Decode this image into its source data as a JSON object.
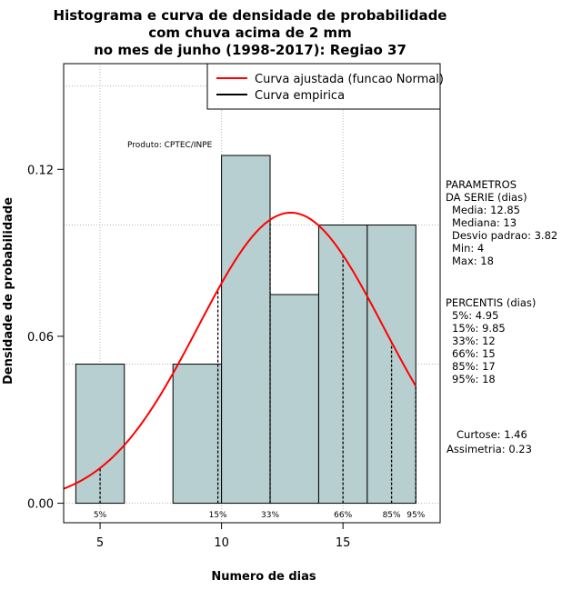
{
  "chart_data": {
    "type": "bar",
    "title": [
      "Histograma e curva de densidade de probabilidade",
      "com chuva acima de 2 mm",
      "no mes de junho (1998-2017): Regiao 37"
    ],
    "xlabel": "Numero de dias",
    "ylabel": "Densidade de probabilidade",
    "xlim": [
      3.5,
      19
    ],
    "ylim": [
      -0.007,
      0.158
    ],
    "x_ticks": [
      5,
      10,
      15
    ],
    "y_ticks": [
      0.0,
      0.06,
      0.12
    ],
    "y_tick_labels": [
      "0.00",
      "0.06",
      "0.12"
    ],
    "grid": true,
    "histogram": {
      "bins": [
        {
          "from": 4,
          "to": 6,
          "density": 0.05
        },
        {
          "from": 6,
          "to": 8,
          "density": 0.0
        },
        {
          "from": 8,
          "to": 10,
          "density": 0.05
        },
        {
          "from": 10,
          "to": 12,
          "density": 0.125
        },
        {
          "from": 12,
          "to": 14,
          "density": 0.075
        },
        {
          "from": 14,
          "to": 16,
          "density": 0.1
        },
        {
          "from": 16,
          "to": 18,
          "density": 0.1
        }
      ],
      "fill": "#b7cfd0"
    },
    "fitted_curve": {
      "name": "Curva ajustada (funcao Normal)",
      "distribution": "normal",
      "mean": 12.85,
      "sd": 3.82,
      "color": "#ff0000"
    },
    "empirical_curve": {
      "name": "Curva empirica",
      "color": "#000000"
    },
    "legend_position": "top-right",
    "percentile_markers": [
      {
        "label": "5%",
        "x": 5
      },
      {
        "label": "15%",
        "x": 9.85
      },
      {
        "label": "33%",
        "x": 12
      },
      {
        "label": "66%",
        "x": 15
      },
      {
        "label": "85%",
        "x": 17
      },
      {
        "label": "95%",
        "x": 18
      }
    ]
  },
  "annotations": {
    "product": "Produto: CPTEC/INPE",
    "params_header": [
      "PARAMETROS",
      "DA SERIE (dias)"
    ],
    "params": [
      "Media: 12.85",
      "Mediana: 13",
      "Desvio padrao: 3.82",
      "Min: 4",
      "Max: 18"
    ],
    "percentis_header": "PERCENTIS (dias)",
    "percentis": [
      "5%: 4.95",
      "15%: 9.85",
      "33%: 12",
      "66%: 15",
      "85%: 17",
      "95%: 18"
    ],
    "curtose": "Curtose: 1.46",
    "assimetria": "Assimetria: 0.23"
  }
}
